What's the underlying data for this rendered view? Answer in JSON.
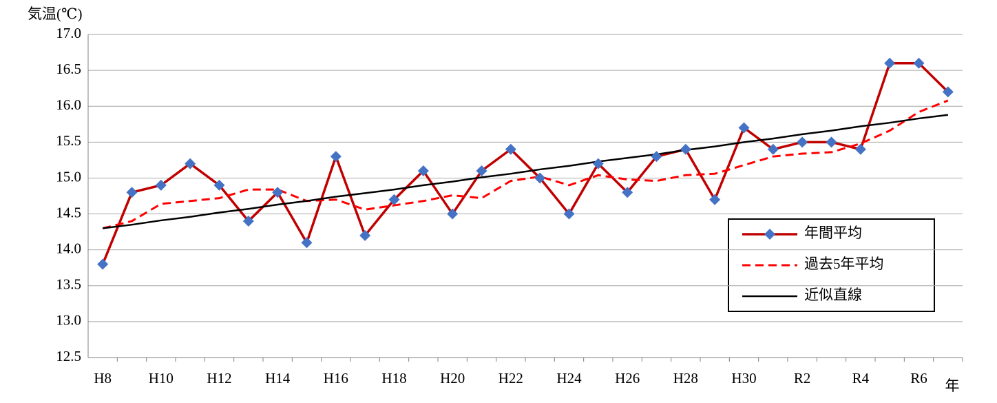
{
  "chart_data": {
    "type": "line",
    "y_axis_label": "気温(℃)",
    "x_axis_label": "年",
    "categories": [
      "H8",
      null,
      "H10",
      null,
      "H12",
      null,
      "H14",
      null,
      "H16",
      null,
      "H18",
      null,
      "H20",
      null,
      "H22",
      null,
      "H24",
      null,
      "H26",
      null,
      "H28",
      null,
      "H30",
      null,
      "R2",
      null,
      "R4",
      null,
      "R6",
      null
    ],
    "series": [
      {
        "name": "年間平均",
        "color": "#c00000",
        "marker": "diamond",
        "marker_color": "#4472c4",
        "dash": false,
        "width": 3.5,
        "values": [
          13.8,
          14.8,
          14.9,
          15.2,
          14.9,
          14.4,
          14.8,
          14.1,
          15.3,
          14.2,
          14.7,
          15.1,
          14.5,
          15.1,
          15.4,
          15.0,
          14.5,
          15.2,
          14.8,
          15.3,
          15.4,
          14.7,
          15.7,
          15.4,
          15.5,
          15.5,
          15.4,
          16.6,
          16.6,
          16.2
        ]
      },
      {
        "name": "過去5年平均",
        "color": "#ff0000",
        "marker": null,
        "dash": true,
        "width": 3,
        "values": [
          14.3,
          14.4,
          14.64,
          14.68,
          14.72,
          14.84,
          14.84,
          14.68,
          14.7,
          14.56,
          14.62,
          14.68,
          14.76,
          14.72,
          14.96,
          15.02,
          14.9,
          15.04,
          14.98,
          14.96,
          15.04,
          15.06,
          15.18,
          15.3,
          15.34,
          15.36,
          15.48,
          15.66,
          15.92,
          16.08
        ]
      },
      {
        "name": "近似直線",
        "color": "#000000",
        "marker": null,
        "dash": false,
        "width": 2.5,
        "values": [
          14.3,
          14.35,
          14.41,
          14.46,
          14.52,
          14.57,
          14.63,
          14.68,
          14.74,
          14.79,
          14.84,
          14.9,
          14.95,
          15.01,
          15.06,
          15.12,
          15.17,
          15.23,
          15.28,
          15.33,
          15.39,
          15.44,
          15.5,
          15.55,
          15.61,
          15.66,
          15.72,
          15.77,
          15.83,
          15.88
        ]
      }
    ],
    "ylim": [
      12.5,
      17.0
    ],
    "yticks": [
      {
        "value": 12.5,
        "label": "12.5"
      },
      {
        "value": 13.0,
        "label": "13.0"
      },
      {
        "value": 13.5,
        "label": "13.5"
      },
      {
        "value": 14.0,
        "label": "14.0"
      },
      {
        "value": 14.5,
        "label": "14.5"
      },
      {
        "value": 15.0,
        "label": "15.0"
      },
      {
        "value": 15.5,
        "label": "15.5"
      },
      {
        "value": 16.0,
        "label": "16.0"
      },
      {
        "value": 16.5,
        "label": "16.5"
      },
      {
        "value": 17.0,
        "label": "17.0"
      }
    ],
    "grid": true,
    "legend": "right"
  }
}
